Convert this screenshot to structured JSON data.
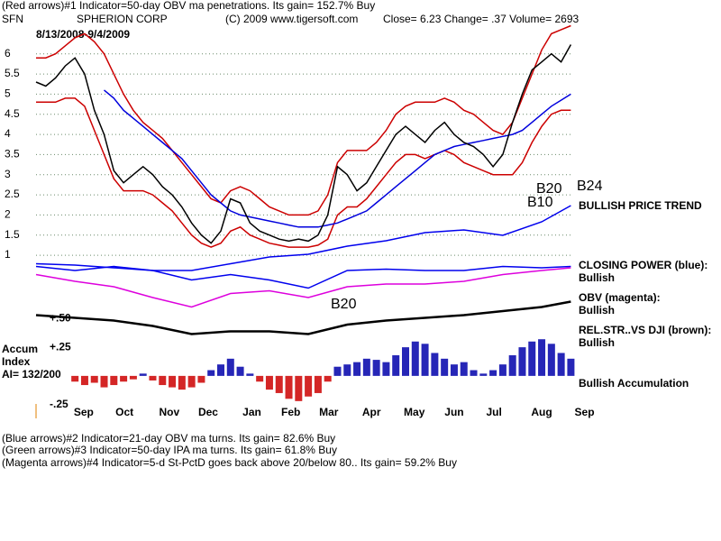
{
  "header": {
    "line1": "(Red arrows)#1 Indicator=50-day OBV ma penetrations. Its gain= 152.7% Buy",
    "ticker": "SFN",
    "company": "SPHERION CORP",
    "copyright": "(C) 2009 www.tigersoft.com",
    "quote": "Close= 6.23 Change= .37 Volume= 2693",
    "dates": "8/13/2008-9/4/2009"
  },
  "annotations": [
    "B24",
    "B20",
    "B10",
    "B20"
  ],
  "footer": [
    "(Blue arrows)#2 Indicator=21-day OBV ma turns. Its gain= 82.6% Buy",
    "(Green arrows)#3 Indicator=50-day IPA ma turns. Its gain= 61.8% Buy",
    "(Magenta arrows)#4 Indicator=5-d St-PctD goes back above 20/below 80.. Its gain= 59.2% Buy"
  ],
  "chart_data": [
    {
      "type": "line",
      "x": [
        0,
        1,
        2,
        3,
        4,
        5,
        6,
        7,
        8,
        9,
        10,
        11,
        12,
        13,
        14,
        15,
        16,
        17,
        18,
        19,
        20,
        21,
        22,
        23,
        24,
        25,
        26,
        27,
        28,
        29,
        30,
        31,
        32,
        33,
        34,
        35,
        36,
        37,
        38,
        39,
        40,
        41,
        42,
        43,
        44,
        45,
        46,
        47,
        48,
        49,
        50,
        51,
        52,
        53,
        54,
        55
      ],
      "xlim": [
        0,
        57
      ],
      "xticks": [
        {
          "value": 4.9,
          "label": "Sep"
        },
        {
          "value": 9.1,
          "label": "Oct"
        },
        {
          "value": 13.7,
          "label": "Nov"
        },
        {
          "value": 17.7,
          "label": "Dec"
        },
        {
          "value": 22.2,
          "label": "Jan"
        },
        {
          "value": 26.2,
          "label": "Feb"
        },
        {
          "value": 30.1,
          "label": "Mar"
        },
        {
          "value": 34.5,
          "label": "Apr"
        },
        {
          "value": 38.9,
          "label": "May"
        },
        {
          "value": 43,
          "label": "Jun"
        },
        {
          "value": 47.1,
          "label": "Jul"
        },
        {
          "value": 52,
          "label": "Aug"
        },
        {
          "value": 56.4,
          "label": "Sep"
        }
      ],
      "ylim": [
        0.8,
        6.8
      ],
      "yticks": [
        1,
        1.5,
        2,
        2.5,
        3,
        3.5,
        4,
        4.5,
        5,
        5.5,
        6
      ],
      "grid": true,
      "series": [
        {
          "color": "#cc0000",
          "values": [
            5.9,
            5.9,
            6.0,
            6.2,
            6.4,
            6.5,
            6.3,
            6.0,
            5.5,
            5.0,
            4.6,
            4.3,
            4.1,
            3.9,
            3.6,
            3.3,
            3.0,
            2.7,
            2.4,
            2.3,
            2.6,
            2.7,
            2.6,
            2.4,
            2.2,
            2.1,
            2.0,
            2.0,
            2.0,
            2.1,
            2.5,
            3.3,
            3.6,
            3.6,
            3.6,
            3.8,
            4.1,
            4.5,
            4.7,
            4.8,
            4.8,
            4.8,
            4.9,
            4.8,
            4.6,
            4.5,
            4.3,
            4.1,
            4.0,
            4.3,
            4.9,
            5.5,
            6.1,
            6.5,
            6.6,
            6.7
          ]
        },
        {
          "color": "#cc0000",
          "values": [
            4.8,
            4.8,
            4.8,
            4.9,
            4.9,
            4.7,
            4.1,
            3.5,
            2.9,
            2.6,
            2.6,
            2.6,
            2.5,
            2.3,
            2.1,
            1.8,
            1.5,
            1.3,
            1.2,
            1.3,
            1.6,
            1.7,
            1.5,
            1.4,
            1.3,
            1.25,
            1.2,
            1.2,
            1.2,
            1.25,
            1.4,
            2.0,
            2.2,
            2.2,
            2.4,
            2.7,
            3.0,
            3.3,
            3.5,
            3.5,
            3.4,
            3.5,
            3.6,
            3.5,
            3.3,
            3.2,
            3.1,
            3.0,
            3.0,
            3.0,
            3.3,
            3.8,
            4.2,
            4.5,
            4.6,
            4.6
          ]
        },
        {
          "color": "#0000dd",
          "values": [
            null,
            null,
            null,
            null,
            null,
            null,
            null,
            5.1,
            4.9,
            4.6,
            4.4,
            4.2,
            4.0,
            3.8,
            3.6,
            3.4,
            3.1,
            2.8,
            2.5,
            2.3,
            2.1,
            2.0,
            1.95,
            1.9,
            1.85,
            1.8,
            1.75,
            1.7,
            1.7,
            1.7,
            1.75,
            1.8,
            1.9,
            2.0,
            2.1,
            2.3,
            2.5,
            2.7,
            2.9,
            3.1,
            3.3,
            3.5,
            3.6,
            3.7,
            3.75,
            3.8,
            3.85,
            3.9,
            3.95,
            4.0,
            4.1,
            4.3,
            4.5,
            4.7,
            4.85,
            5.0
          ]
        },
        {
          "color": "#000000",
          "values": [
            5.3,
            5.2,
            5.4,
            5.7,
            5.9,
            5.5,
            4.6,
            4.0,
            3.1,
            2.8,
            3.0,
            3.2,
            3.0,
            2.7,
            2.5,
            2.2,
            1.8,
            1.5,
            1.3,
            1.6,
            2.4,
            2.3,
            1.8,
            1.6,
            1.5,
            1.4,
            1.35,
            1.4,
            1.35,
            1.5,
            2.0,
            3.2,
            3.0,
            2.6,
            2.8,
            3.2,
            3.6,
            4.0,
            4.2,
            4.0,
            3.8,
            4.1,
            4.3,
            4.0,
            3.8,
            3.7,
            3.5,
            3.2,
            3.5,
            4.3,
            5.0,
            5.6,
            5.8,
            6.0,
            5.8,
            6.23
          ]
        }
      ]
    },
    {
      "type": "line",
      "x": [
        0,
        4,
        8,
        12,
        16,
        20,
        24,
        28,
        32,
        36,
        40,
        44,
        48,
        52,
        55
      ],
      "ylim": [
        0,
        100
      ],
      "series": [
        {
          "name": "BULLISH PRICE TREND",
          "color": "#0000ee",
          "values": [
            55,
            54,
            52,
            50,
            50,
            55,
            60,
            62,
            68,
            72,
            78,
            80,
            76,
            86,
            98
          ]
        },
        {
          "name": "CLOSING POWER (blue):",
          "status": "Bullish",
          "color": "#0000ee",
          "values": [
            53,
            50,
            53,
            50,
            43,
            47,
            43,
            37,
            50,
            51,
            50,
            50,
            53,
            52,
            53
          ]
        },
        {
          "name": "OBV (magenta):",
          "status": "Bullish",
          "color": "#dd00dd",
          "values": [
            47,
            42,
            38,
            30,
            23,
            33,
            35,
            30,
            38,
            40,
            40,
            42,
            47,
            50,
            52
          ]
        },
        {
          "name": "REL.STR..VS DJI (brown):",
          "status": "Bullish",
          "color": "#000000",
          "values": [
            17,
            15,
            13,
            9,
            3,
            5,
            5,
            3,
            10,
            13,
            15,
            17,
            20,
            23,
            27
          ]
        }
      ]
    },
    {
      "type": "bar",
      "title": [
        "Accum",
        "Index",
        "AI= 132/200"
      ],
      "status": "Bullish Accumulation",
      "x": [
        4,
        5,
        6,
        7,
        8,
        9,
        10,
        11,
        12,
        13,
        14,
        15,
        16,
        17,
        18,
        19,
        20,
        21,
        22,
        23,
        24,
        25,
        26,
        27,
        28,
        29,
        30,
        31,
        32,
        33,
        34,
        35,
        36,
        37,
        38,
        39,
        40,
        41,
        42,
        43,
        44,
        45,
        46,
        47,
        48,
        49,
        50,
        51,
        52,
        53,
        54,
        55
      ],
      "values": [
        -0.05,
        -0.08,
        -0.06,
        -0.1,
        -0.08,
        -0.05,
        -0.03,
        0.02,
        -0.04,
        -0.08,
        -0.1,
        -0.12,
        -0.1,
        -0.06,
        0.05,
        0.1,
        0.15,
        0.08,
        0.02,
        -0.05,
        -0.12,
        -0.15,
        -0.2,
        -0.22,
        -0.18,
        -0.15,
        -0.05,
        0.08,
        0.1,
        0.12,
        0.15,
        0.14,
        0.12,
        0.18,
        0.25,
        0.3,
        0.28,
        0.2,
        0.15,
        0.1,
        0.12,
        0.05,
        0.02,
        0.05,
        0.1,
        0.18,
        0.25,
        0.3,
        0.32,
        0.28,
        0.2,
        0.15
      ],
      "pos_color": "#0000aa",
      "neg_color": "#cc0000",
      "ylim": [
        -0.3,
        0.55
      ],
      "yticks": [
        {
          "value": 0.5,
          "label": "+.50"
        },
        {
          "value": 0.25,
          "label": "+.25"
        },
        {
          "value": -0.25,
          "label": "-.25"
        }
      ]
    }
  ]
}
